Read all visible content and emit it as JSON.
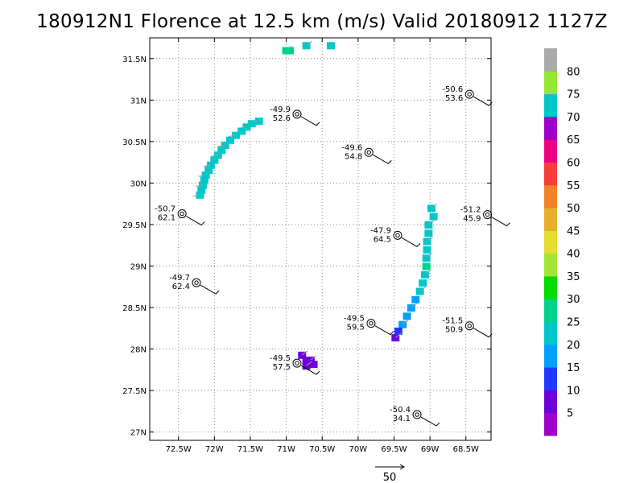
{
  "title": "180912N1 Florence at 12.5 km (m/s) Valid 20180912  1127Z",
  "colors": {
    "segment_blue": "#1fa2ee",
    "segment_cyan": "#10c5c5",
    "segment_mid_blue": "#1f4fee",
    "segment_purple": "#9a10cc",
    "grid": "#8a8a8a",
    "vector": "#9a9a9a"
  },
  "chart_data": {
    "type": "scatter",
    "title": "180912N1 Florence at 12.5 km (m/s) Valid 20180912  1127Z",
    "xlabel": "",
    "ylabel": "",
    "xlim": [
      -72.9,
      -68.15
    ],
    "ylim": [
      26.9,
      31.75
    ],
    "grid": true,
    "x_ticks": [
      {
        "v": -72.5,
        "label": "72.5W"
      },
      {
        "v": -72,
        "label": "72W"
      },
      {
        "v": -71.5,
        "label": "71.5W"
      },
      {
        "v": -71,
        "label": "71W"
      },
      {
        "v": -70.5,
        "label": "70.5W"
      },
      {
        "v": -70,
        "label": "70W"
      },
      {
        "v": -69.5,
        "label": "69.5W"
      },
      {
        "v": -69,
        "label": "69W"
      },
      {
        "v": -68.5,
        "label": "68.5W"
      }
    ],
    "y_ticks": [
      {
        "v": 27,
        "label": "27N"
      },
      {
        "v": 27.5,
        "label": "27.5N"
      },
      {
        "v": 28,
        "label": "28N"
      },
      {
        "v": 28.5,
        "label": "28.5N"
      },
      {
        "v": 29,
        "label": "29N"
      },
      {
        "v": 29.5,
        "label": "29.5N"
      },
      {
        "v": 30,
        "label": "30N"
      },
      {
        "v": 30.5,
        "label": "30.5N"
      },
      {
        "v": 31,
        "label": "31N"
      },
      {
        "v": 31.5,
        "label": "31.5N"
      }
    ],
    "stations": [
      {
        "lon": -68.45,
        "lat": 31.07,
        "top": "-50.6",
        "bottom": "53.6"
      },
      {
        "lon": -70.85,
        "lat": 30.83,
        "top": "-49.9",
        "bottom": "52.6"
      },
      {
        "lon": -69.85,
        "lat": 30.37,
        "top": "-49.6",
        "bottom": "54.8"
      },
      {
        "lon": -72.45,
        "lat": 29.63,
        "top": "-50.7",
        "bottom": "62.1"
      },
      {
        "lon": -68.2,
        "lat": 29.62,
        "top": "-51.2",
        "bottom": "45.9"
      },
      {
        "lon": -69.45,
        "lat": 29.37,
        "top": "-47.9",
        "bottom": "64.5"
      },
      {
        "lon": -72.25,
        "lat": 28.8,
        "top": "-49.7",
        "bottom": "62.4"
      },
      {
        "lon": -69.82,
        "lat": 28.31,
        "top": "-49.5",
        "bottom": "59.5"
      },
      {
        "lon": -68.45,
        "lat": 28.28,
        "top": "-51.5",
        "bottom": "50.9"
      },
      {
        "lon": -70.85,
        "lat": 27.83,
        "top": "-49.5",
        "bottom": "57.5"
      },
      {
        "lon": -69.18,
        "lat": 27.21,
        "top": "-50.4",
        "bottom": "34.1"
      }
    ],
    "segments": [
      {
        "name": "west-arc",
        "cells": [
          {
            "lon": -71.38,
            "lat": 30.75,
            "w": 20
          },
          {
            "lon": -71.48,
            "lat": 30.72,
            "w": 20
          },
          {
            "lon": -71.55,
            "lat": 30.68,
            "w": 20
          },
          {
            "lon": -71.62,
            "lat": 30.63,
            "w": 20
          },
          {
            "lon": -71.7,
            "lat": 30.58,
            "w": 20
          },
          {
            "lon": -71.78,
            "lat": 30.52,
            "w": 20
          },
          {
            "lon": -71.85,
            "lat": 30.46,
            "w": 20
          },
          {
            "lon": -71.9,
            "lat": 30.4,
            "w": 20
          },
          {
            "lon": -71.95,
            "lat": 30.34,
            "w": 20
          },
          {
            "lon": -72.0,
            "lat": 30.28,
            "w": 20
          },
          {
            "lon": -72.05,
            "lat": 30.22,
            "w": 20
          },
          {
            "lon": -72.08,
            "lat": 30.16,
            "w": 20
          },
          {
            "lon": -72.12,
            "lat": 30.1,
            "w": 20
          },
          {
            "lon": -72.14,
            "lat": 30.04,
            "w": 20
          },
          {
            "lon": -72.16,
            "lat": 29.98,
            "w": 20
          },
          {
            "lon": -72.18,
            "lat": 29.92,
            "w": 20
          },
          {
            "lon": -72.2,
            "lat": 29.86,
            "w": 20
          }
        ]
      },
      {
        "name": "north-top",
        "cells": [
          {
            "lon": -71.0,
            "lat": 31.6,
            "w": 25
          },
          {
            "lon": -70.95,
            "lat": 31.6,
            "w": 25
          },
          {
            "lon": -70.72,
            "lat": 31.66,
            "w": 20
          },
          {
            "lon": -70.38,
            "lat": 31.66,
            "w": 20
          }
        ]
      },
      {
        "name": "east-band",
        "cells": [
          {
            "lon": -68.98,
            "lat": 29.7,
            "w": 20
          },
          {
            "lon": -68.95,
            "lat": 29.6,
            "w": 20
          },
          {
            "lon": -69.02,
            "lat": 29.5,
            "w": 20
          },
          {
            "lon": -69.02,
            "lat": 29.4,
            "w": 20
          },
          {
            "lon": -69.04,
            "lat": 29.3,
            "w": 20
          },
          {
            "lon": -69.04,
            "lat": 29.2,
            "w": 20
          },
          {
            "lon": -69.05,
            "lat": 29.1,
            "w": 20
          },
          {
            "lon": -69.05,
            "lat": 29.0,
            "w": 25
          },
          {
            "lon": -69.07,
            "lat": 28.9,
            "w": 20
          },
          {
            "lon": -69.1,
            "lat": 28.8,
            "w": 20
          },
          {
            "lon": -69.14,
            "lat": 28.7,
            "w": 20
          },
          {
            "lon": -69.2,
            "lat": 28.6,
            "w": 15
          },
          {
            "lon": -69.26,
            "lat": 28.5,
            "w": 15
          },
          {
            "lon": -69.32,
            "lat": 28.4,
            "w": 15
          },
          {
            "lon": -69.38,
            "lat": 28.3,
            "w": 15
          },
          {
            "lon": -69.44,
            "lat": 28.22,
            "w": 10
          },
          {
            "lon": -69.48,
            "lat": 28.14,
            "w": 5
          }
        ]
      },
      {
        "name": "south-cluster",
        "cells": [
          {
            "lon": -70.78,
            "lat": 27.93,
            "w": 5
          },
          {
            "lon": -70.72,
            "lat": 27.87,
            "w": 5
          },
          {
            "lon": -70.66,
            "lat": 27.87,
            "w": 5
          },
          {
            "lon": -70.62,
            "lat": 27.82,
            "w": 5
          },
          {
            "lon": -70.72,
            "lat": 27.8,
            "w": 5
          }
        ]
      }
    ],
    "colorbar": [
      {
        "lo": 0,
        "hi": 5,
        "color": "#a000c8"
      },
      {
        "lo": 5,
        "hi": 10,
        "color": "#6e00dc"
      },
      {
        "lo": 10,
        "hi": 15,
        "color": "#1e3cff"
      },
      {
        "lo": 15,
        "hi": 20,
        "color": "#00a0ff"
      },
      {
        "lo": 20,
        "hi": 25,
        "color": "#00c8c8"
      },
      {
        "lo": 25,
        "hi": 30,
        "color": "#00d28c"
      },
      {
        "lo": 30,
        "hi": 35,
        "color": "#00dc00"
      },
      {
        "lo": 35,
        "hi": 40,
        "color": "#a0e632"
      },
      {
        "lo": 40,
        "hi": 45,
        "color": "#e6dc32"
      },
      {
        "lo": 45,
        "hi": 50,
        "color": "#e6af2d"
      },
      {
        "lo": 50,
        "hi": 55,
        "color": "#f08228"
      },
      {
        "lo": 55,
        "hi": 60,
        "color": "#fa3c3c"
      },
      {
        "lo": 60,
        "hi": 65,
        "color": "#f00082"
      },
      {
        "lo": 65,
        "hi": 70,
        "color": "#a000c8"
      },
      {
        "lo": 70,
        "hi": 75,
        "color": "#00c8c8"
      },
      {
        "lo": 75,
        "hi": 80,
        "color": "#96e632"
      },
      {
        "lo": 80,
        "hi": 85,
        "color": "#aaaaaa"
      }
    ],
    "colorbar_labels": [
      "5",
      "10",
      "15",
      "20",
      "25",
      "30",
      "35",
      "40",
      "45",
      "50",
      "55",
      "60",
      "65",
      "70",
      "75",
      "80"
    ],
    "reference_vector": {
      "label": "50",
      "value": 50
    }
  }
}
